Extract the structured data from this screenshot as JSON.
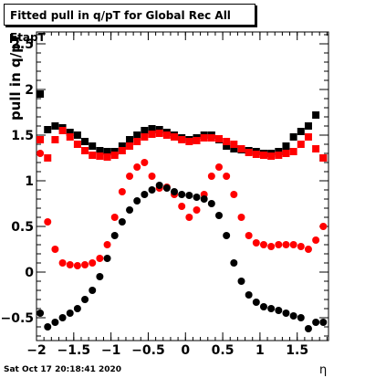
{
  "chart_data": {
    "type": "scatter",
    "title": "Fitted pull in q/pT for Global Rec All EtapT",
    "xlabel": "η",
    "ylabel": "pull in q/pT",
    "xlim": [
      -2.0,
      1.92
    ],
    "ylim": [
      -0.75,
      2.63
    ],
    "x_ticks": [
      -2,
      -1.5,
      -1,
      -0.5,
      0,
      0.5,
      1,
      1.5
    ],
    "x_tick_labels": [
      "−2",
      "−1.5",
      "−1",
      "−0.5",
      "0",
      "0.5",
      "1",
      "1.5"
    ],
    "y_ticks": [
      -0.5,
      0,
      0.5,
      1,
      1.5,
      2,
      2.5
    ],
    "y_tick_labels": [
      "−0.5",
      "0",
      "0.5",
      "1",
      "1.5",
      "2",
      "2.5"
    ],
    "grid": false,
    "legend": "none",
    "series": [
      {
        "color": "#000000",
        "markers": "square",
        "x": [
          -1.95,
          -1.85,
          -1.75,
          -1.65,
          -1.55,
          -1.45,
          -1.35,
          -1.25,
          -1.15,
          -1.05,
          -0.95,
          -0.85,
          -0.75,
          -0.65,
          -0.55,
          -0.45,
          -0.35,
          -0.25,
          -0.15,
          -0.05,
          0.05,
          0.15,
          0.25,
          0.35,
          0.45,
          0.55,
          0.65,
          0.75,
          0.85,
          0.95,
          1.05,
          1.15,
          1.25,
          1.35,
          1.45,
          1.55,
          1.65,
          1.75,
          1.85
        ],
        "y": [
          1.95,
          1.56,
          1.6,
          1.58,
          1.53,
          1.5,
          1.43,
          1.38,
          1.33,
          1.32,
          1.32,
          1.38,
          1.45,
          1.5,
          1.55,
          1.57,
          1.56,
          1.53,
          1.5,
          1.47,
          1.45,
          1.47,
          1.5,
          1.5,
          1.45,
          1.38,
          1.35,
          1.34,
          1.33,
          1.32,
          1.3,
          1.3,
          1.32,
          1.38,
          1.48,
          1.54,
          1.6,
          1.72,
          1.25
        ]
      },
      {
        "color": "#ff0000",
        "markers": "square",
        "x": [
          -1.95,
          -1.85,
          -1.75,
          -1.65,
          -1.55,
          -1.45,
          -1.35,
          -1.25,
          -1.15,
          -1.05,
          -0.95,
          -0.85,
          -0.75,
          -0.65,
          -0.55,
          -0.45,
          -0.35,
          -0.25,
          -0.15,
          -0.05,
          0.05,
          0.15,
          0.25,
          0.35,
          0.45,
          0.55,
          0.65,
          0.75,
          0.85,
          0.95,
          1.05,
          1.15,
          1.25,
          1.35,
          1.45,
          1.55,
          1.65,
          1.75,
          1.85
        ],
        "y": [
          1.45,
          1.25,
          1.45,
          1.55,
          1.48,
          1.4,
          1.33,
          1.28,
          1.27,
          1.26,
          1.28,
          1.33,
          1.38,
          1.43,
          1.48,
          1.51,
          1.52,
          1.5,
          1.48,
          1.45,
          1.43,
          1.44,
          1.47,
          1.47,
          1.46,
          1.43,
          1.4,
          1.35,
          1.31,
          1.29,
          1.28,
          1.27,
          1.28,
          1.3,
          1.32,
          1.4,
          1.48,
          1.35,
          1.25
        ]
      },
      {
        "color": "#ff0000",
        "markers": "circle",
        "x": [
          -1.95,
          -1.85,
          -1.75,
          -1.65,
          -1.55,
          -1.45,
          -1.35,
          -1.25,
          -1.15,
          -1.05,
          -0.95,
          -0.85,
          -0.75,
          -0.65,
          -0.55,
          -0.45,
          -0.35,
          -0.25,
          -0.15,
          -0.05,
          0.05,
          0.15,
          0.25,
          0.35,
          0.45,
          0.55,
          0.65,
          0.75,
          0.85,
          0.95,
          1.05,
          1.15,
          1.25,
          1.35,
          1.45,
          1.55,
          1.65,
          1.75,
          1.85
        ],
        "y": [
          1.3,
          0.55,
          0.25,
          0.1,
          0.08,
          0.07,
          0.08,
          0.1,
          0.15,
          0.3,
          0.6,
          0.88,
          1.05,
          1.15,
          1.2,
          1.05,
          0.92,
          0.93,
          0.85,
          0.72,
          0.6,
          0.68,
          0.85,
          1.05,
          1.15,
          1.05,
          0.85,
          0.6,
          0.4,
          0.32,
          0.3,
          0.28,
          0.3,
          0.3,
          0.3,
          0.28,
          0.25,
          0.35,
          0.5
        ]
      },
      {
        "color": "#000000",
        "markers": "circle",
        "x": [
          -1.95,
          -1.85,
          -1.75,
          -1.65,
          -1.55,
          -1.45,
          -1.35,
          -1.25,
          -1.15,
          -1.05,
          -0.95,
          -0.85,
          -0.75,
          -0.65,
          -0.55,
          -0.45,
          -0.35,
          -0.25,
          -0.15,
          -0.05,
          0.05,
          0.15,
          0.25,
          0.35,
          0.45,
          0.55,
          0.65,
          0.75,
          0.85,
          0.95,
          1.05,
          1.15,
          1.25,
          1.35,
          1.45,
          1.55,
          1.65,
          1.75,
          1.85
        ],
        "y": [
          -0.45,
          -0.6,
          -0.55,
          -0.5,
          -0.45,
          -0.4,
          -0.3,
          -0.2,
          -0.05,
          0.15,
          0.4,
          0.55,
          0.68,
          0.78,
          0.85,
          0.9,
          0.95,
          0.92,
          0.88,
          0.85,
          0.84,
          0.82,
          0.8,
          0.75,
          0.62,
          0.4,
          0.1,
          -0.1,
          -0.25,
          -0.33,
          -0.38,
          -0.4,
          -0.42,
          -0.45,
          -0.48,
          -0.5,
          -0.62,
          -0.55,
          -0.55
        ]
      }
    ]
  },
  "footer": {
    "timestamp": "Sat Oct 17 20:18:41 2020"
  }
}
